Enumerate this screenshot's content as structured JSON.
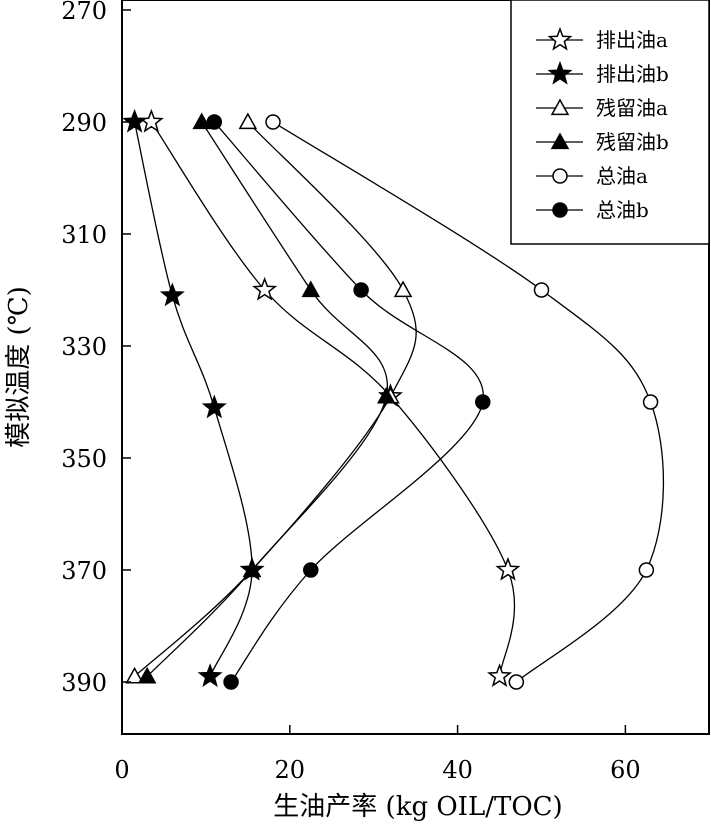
{
  "chart_data": {
    "type": "line",
    "xlabel": "生油产率 (kg OIL/TOC)",
    "ylabel": "模拟温度 (℃)",
    "xlim": [
      0,
      70
    ],
    "ylim": [
      270,
      400
    ],
    "y_inverted": true,
    "xticks": [
      0,
      20,
      40,
      60
    ],
    "xtick_labels": [
      "0",
      "20",
      "40",
      "60"
    ],
    "yticks": [
      270,
      290,
      310,
      330,
      350,
      370,
      390
    ],
    "ytick_labels": [
      "270",
      "290",
      "310",
      "330",
      "350",
      "370",
      "390"
    ],
    "grid": false,
    "legend_position": "top-right",
    "series": [
      {
        "name": "排出油a",
        "marker": "star-open",
        "color": "#000000",
        "points": [
          [
            3.5,
            290
          ],
          [
            17,
            320
          ],
          [
            32,
            339
          ],
          [
            46,
            370
          ],
          [
            45,
            389
          ]
        ]
      },
      {
        "name": "排出油b",
        "marker": "star-filled",
        "color": "#000000",
        "points": [
          [
            1.5,
            290
          ],
          [
            6,
            321
          ],
          [
            11,
            341
          ],
          [
            15.5,
            370
          ],
          [
            10.5,
            389
          ]
        ]
      },
      {
        "name": "残留油a",
        "marker": "triangle-open",
        "color": "#000000",
        "points": [
          [
            15,
            290
          ],
          [
            33.5,
            320
          ],
          [
            32,
            339
          ],
          [
            15.5,
            370
          ],
          [
            1.5,
            389
          ]
        ]
      },
      {
        "name": "残留油b",
        "marker": "triangle-filled",
        "color": "#000000",
        "points": [
          [
            9.5,
            290
          ],
          [
            22.5,
            320
          ],
          [
            31.5,
            339
          ],
          [
            15.5,
            370
          ],
          [
            3,
            389
          ]
        ]
      },
      {
        "name": "总油a",
        "marker": "circle-open",
        "color": "#000000",
        "points": [
          [
            18,
            290
          ],
          [
            50,
            320
          ],
          [
            63,
            340
          ],
          [
            62.5,
            370
          ],
          [
            47,
            390
          ]
        ]
      },
      {
        "name": "总油b",
        "marker": "circle-filled",
        "color": "#000000",
        "points": [
          [
            11,
            290
          ],
          [
            28.5,
            320
          ],
          [
            43,
            340
          ],
          [
            22.5,
            370
          ],
          [
            13,
            390
          ]
        ]
      }
    ]
  }
}
